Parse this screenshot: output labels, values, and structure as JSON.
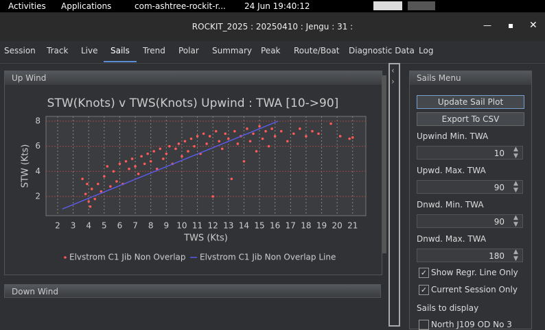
{
  "topbar": {
    "activities": "Activities",
    "applications": "Applications",
    "app": "com-ashtree-rockit-r...",
    "clock": "24 Jun  19:40:12"
  },
  "window": {
    "title": "ROCKIT_2025 : 20250410 : Jengu : 31 :"
  },
  "tabs": [
    "Session",
    "Track",
    "Live",
    "Sails",
    "Trend",
    "Polar",
    "Summary",
    "Peak",
    "Route/Boat",
    "Diagnostic Data",
    "Log"
  ],
  "panels": {
    "upwind": "Up Wind",
    "downwind": "Down Wind",
    "menu": "Sails Menu"
  },
  "menu": {
    "update": "Update Sail Plot",
    "export": "Export To CSV",
    "fields": [
      {
        "label": "Upwind Min. TWA",
        "value": 10
      },
      {
        "label": "Upwd. Max. TWA",
        "value": 90
      },
      {
        "label": "Dnwd. Min. TWA",
        "value": 90
      },
      {
        "label": "Dnwd. Max. TWA",
        "value": 180
      }
    ],
    "checks": [
      "Show Regr. Line Only",
      "Current Session Only"
    ],
    "sails_label": "Sails to display",
    "sail": "North J109 OD No 3"
  },
  "chart_data": {
    "type": "scatter",
    "title": "STW(Knots) v TWS(Knots) Upwind : TWA [10->90]",
    "xlabel": "TWS (Kts)",
    "ylabel": "STW (Kts)",
    "xlim": [
      1.25,
      21.85
    ],
    "ylim": [
      0.47,
      8.38
    ],
    "xticks": [
      2,
      3,
      4,
      5,
      6,
      7,
      8,
      9,
      10,
      11,
      12,
      13,
      14,
      15,
      16,
      17,
      18,
      19,
      20,
      21
    ],
    "yticks": [
      2,
      4,
      6,
      8
    ],
    "grid": true,
    "series": [
      {
        "name": "Elvstrom C1 Jib Non Overlap",
        "color": "#ff5a5a",
        "x": [
          3.6,
          3.8,
          4.0,
          4.2,
          4.4,
          4.6,
          4.8,
          5.0,
          5.2,
          5.4,
          5.6,
          5.8,
          6.0,
          6.2,
          6.4,
          6.6,
          6.8,
          7.0,
          7.2,
          7.4,
          7.6,
          7.8,
          8.0,
          8.2,
          8.4,
          8.6,
          8.8,
          9.0,
          9.2,
          9.4,
          9.6,
          9.8,
          10.0,
          10.2,
          10.4,
          10.6,
          10.8,
          11.0,
          11.2,
          11.4,
          11.6,
          11.8,
          12.0,
          12.2,
          12.4,
          12.6,
          12.8,
          13.0,
          13.2,
          13.4,
          13.6,
          13.8,
          14.0,
          14.2,
          14.4,
          14.6,
          14.8,
          15.0,
          15.2,
          15.4,
          15.6,
          15.8,
          16.0,
          16.4,
          16.8,
          17.2,
          17.6,
          18.0,
          18.4,
          18.8,
          19.6,
          20.2,
          20.8,
          21.0,
          4.1,
          3.9
        ],
        "values": [
          3.4,
          2.2,
          1.6,
          2.6,
          1.8,
          3.0,
          2.4,
          3.6,
          4.4,
          2.8,
          4.0,
          3.2,
          4.6,
          3.0,
          4.8,
          4.2,
          5.0,
          4.4,
          3.8,
          5.2,
          4.6,
          5.4,
          4.8,
          5.6,
          4.2,
          5.8,
          5.0,
          5.4,
          6.0,
          4.6,
          5.8,
          6.2,
          5.2,
          6.4,
          5.6,
          6.6,
          6.0,
          6.8,
          5.4,
          7.0,
          6.2,
          6.8,
          2.0,
          7.2,
          6.4,
          5.8,
          7.0,
          6.6,
          3.4,
          7.2,
          6.2,
          6.8,
          4.8,
          7.4,
          6.4,
          7.0,
          5.6,
          7.6,
          6.6,
          7.2,
          6.0,
          7.4,
          6.8,
          7.2,
          6.4,
          7.0,
          7.4,
          6.8,
          7.2,
          7.0,
          7.8,
          6.8,
          6.6,
          6.7,
          1.2,
          3.0
        ]
      },
      {
        "name": "Elvstrom C1 Jib Non Overlap Line",
        "color": "#5a5ae6",
        "type": "line",
        "x": [
          2.3,
          16.2
        ],
        "values": [
          1.0,
          8.0
        ]
      }
    ]
  }
}
